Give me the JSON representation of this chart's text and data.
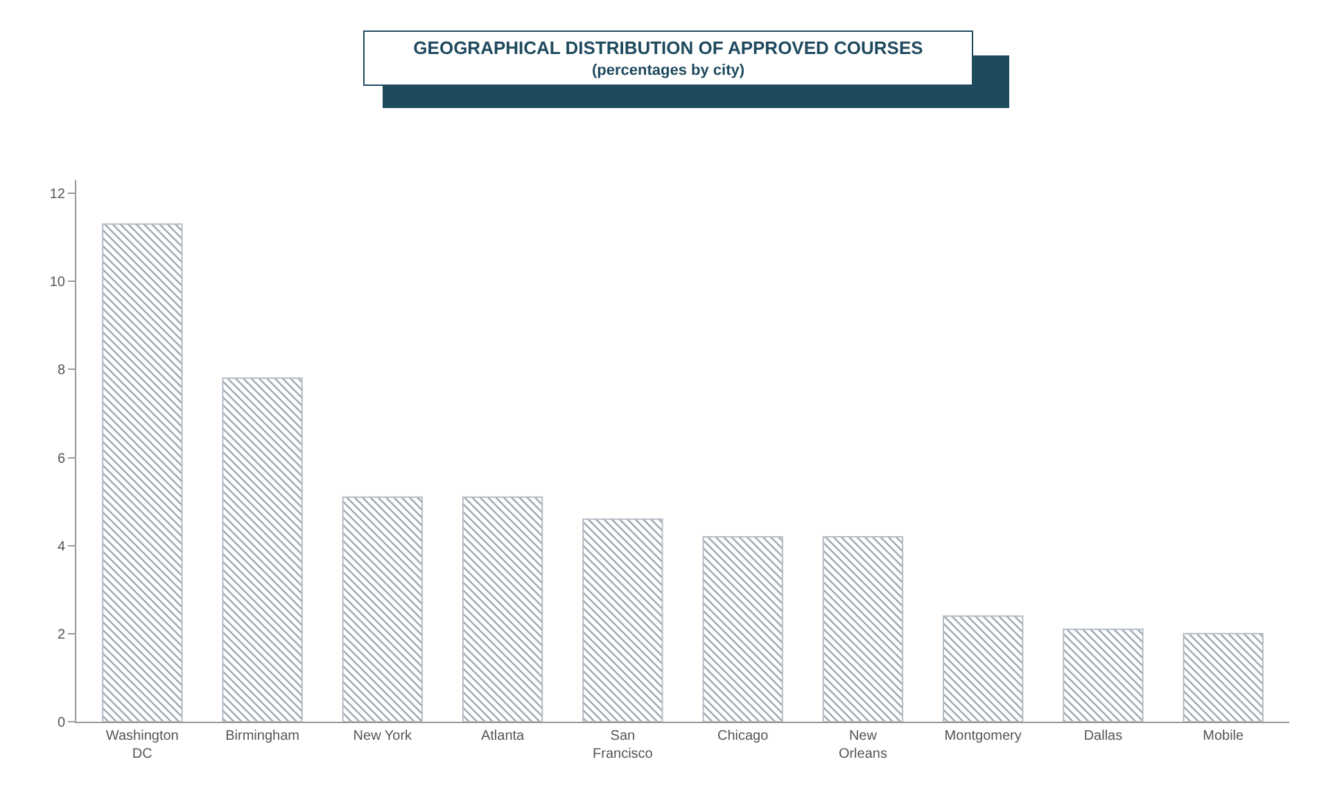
{
  "chart_data": {
    "type": "bar",
    "title": "GEOGRAPHICAL DISTRIBUTION OF APPROVED COURSES",
    "subtitle": "(percentages by city)",
    "categories": [
      "Washington DC",
      "Birmingham",
      "New York",
      "Atlanta",
      "San Francisco",
      "Chicago",
      "New Orleans",
      "Montgomery",
      "Dallas",
      "Mobile"
    ],
    "values": [
      11.3,
      7.8,
      5.1,
      5.1,
      4.6,
      4.2,
      4.2,
      2.4,
      2.1,
      2.0
    ],
    "color": "#b4bcc4",
    "ylim": [
      0,
      12.3
    ],
    "yticks": [
      0,
      2,
      4,
      6,
      8,
      10,
      12
    ],
    "grid": false
  }
}
